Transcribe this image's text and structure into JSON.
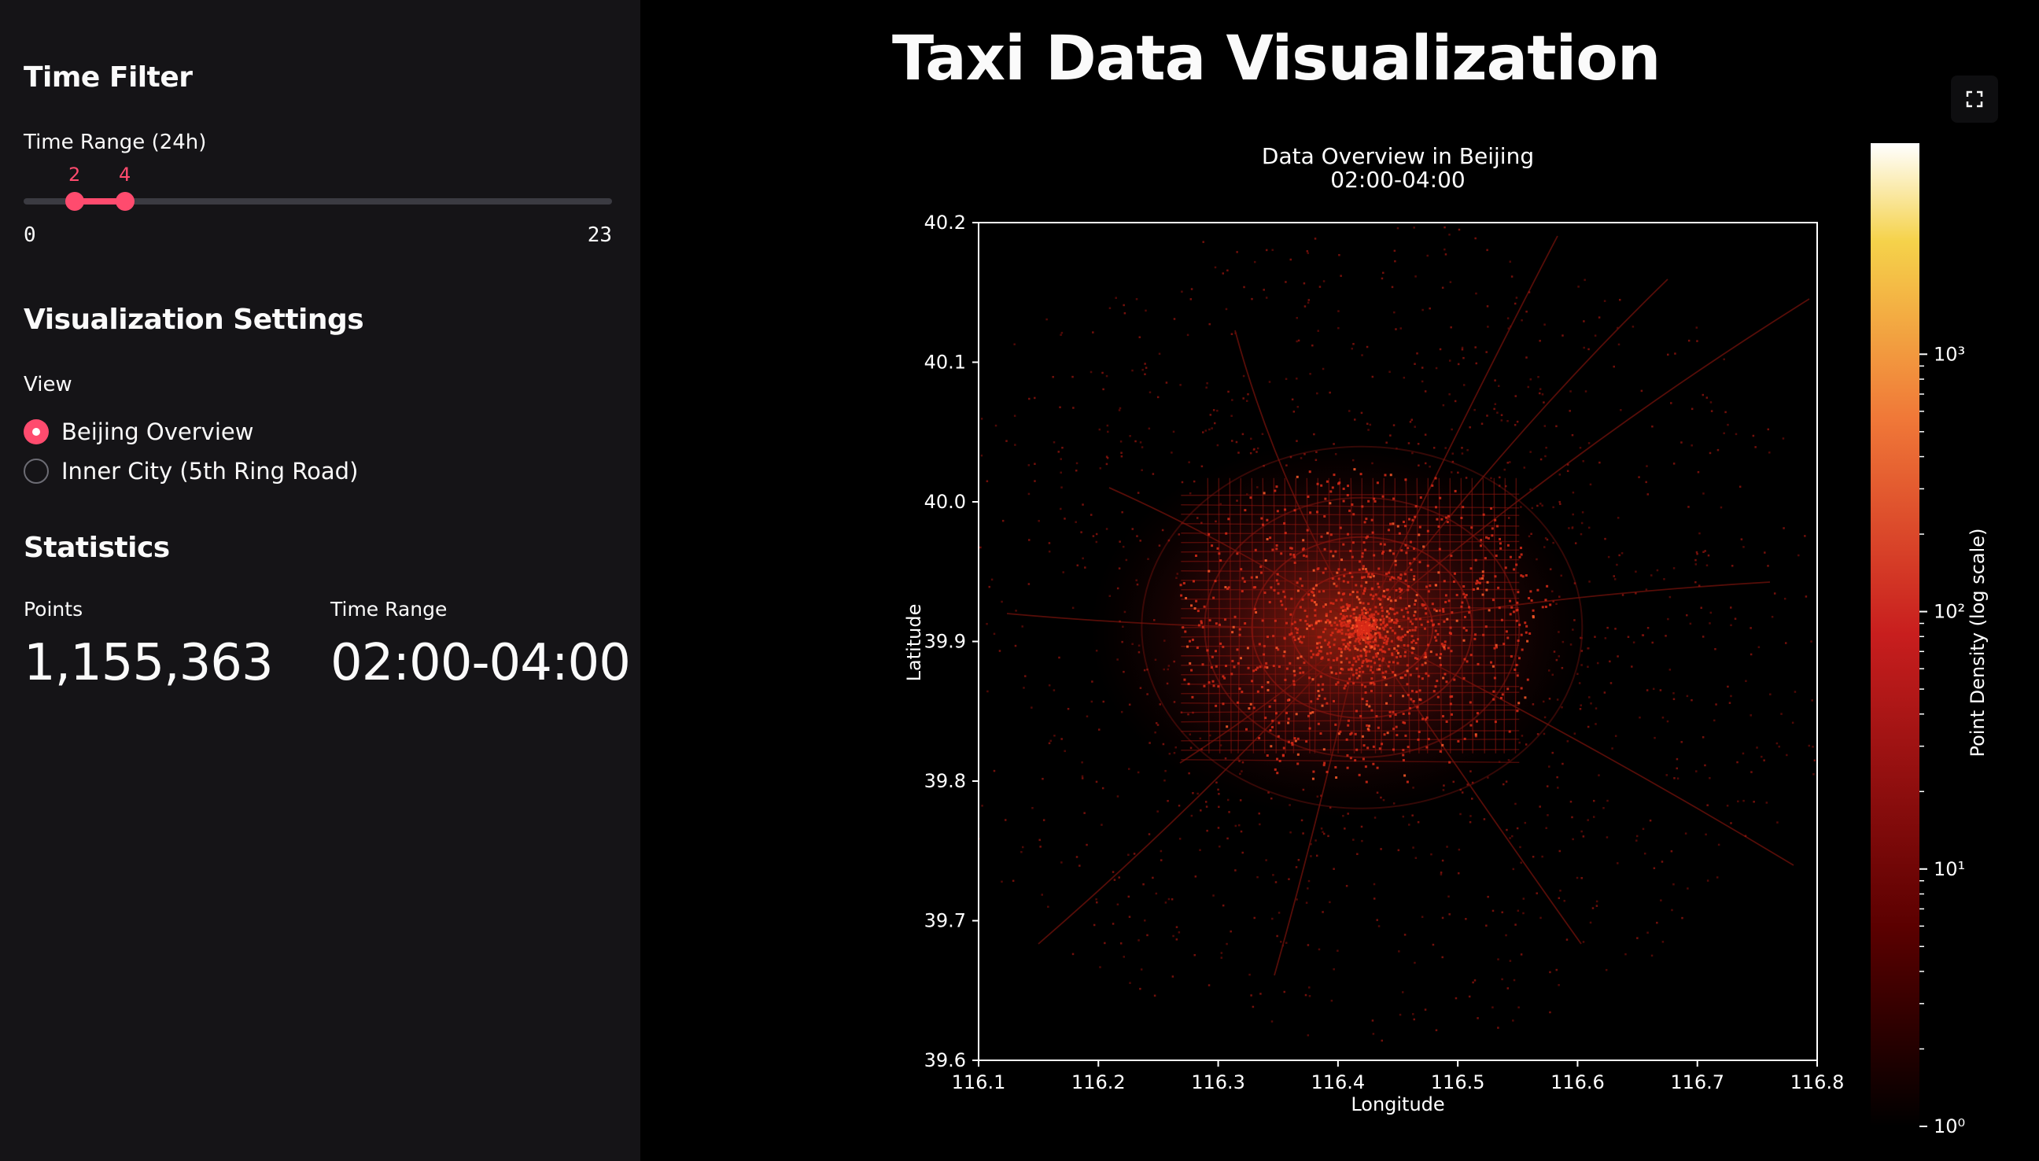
{
  "sidebar": {
    "time_filter_heading": "Time Filter",
    "time_range_label": "Time Range (24h)",
    "slider": {
      "min_label": "0",
      "max_label": "23",
      "low": "2",
      "high": "4",
      "min": 0,
      "max": 23
    },
    "viz_settings_heading": "Visualization Settings",
    "view_label": "View",
    "view_options": [
      {
        "label": "Beijing Overview",
        "selected": true
      },
      {
        "label": "Inner City (5th Ring Road)",
        "selected": false
      }
    ],
    "statistics_heading": "Statistics",
    "metrics": {
      "points_label": "Points",
      "points_value": "1,155,363",
      "time_range_label": "Time Range",
      "time_range_value": "02:00-04:00"
    }
  },
  "main": {
    "title": "Taxi Data Visualization",
    "fullscreen_icon": "expand-icon"
  },
  "chart_data": {
    "type": "heatmap",
    "title": "Data Overview in Beijing",
    "subtitle": "02:00-04:00",
    "xlabel": "Longitude",
    "ylabel": "Latitude",
    "xlim": [
      116.1,
      116.8
    ],
    "ylim": [
      39.6,
      40.2
    ],
    "xticks": [
      "116.1",
      "116.2",
      "116.3",
      "116.4",
      "116.5",
      "116.6",
      "116.7",
      "116.8"
    ],
    "yticks": [
      "39.6",
      "39.7",
      "39.8",
      "39.9",
      "40.0",
      "40.1",
      "40.2"
    ],
    "colorbar": {
      "label": "Point Density (log scale)",
      "scale": "log",
      "ticks": [
        "10⁰",
        "10¹",
        "10²",
        "10³"
      ],
      "colormap": "hot",
      "colors": [
        "#000000",
        "#5a0000",
        "#c81e1e",
        "#f07838",
        "#f5d24a",
        "#ffffff"
      ]
    },
    "background": "#000000",
    "density_color": "#ff3a1a"
  }
}
